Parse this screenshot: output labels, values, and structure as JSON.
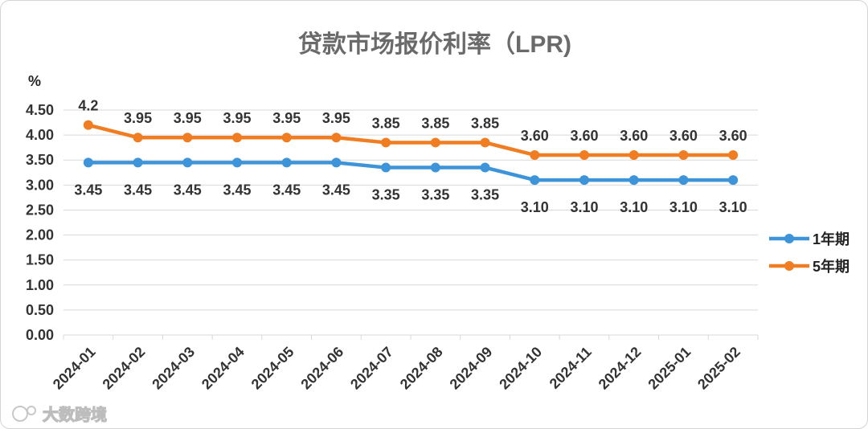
{
  "watermark": "大数跨境",
  "chart_data": {
    "type": "line",
    "title": "贷款市场报价利率（LPR)",
    "ylabel": "%",
    "xlabel": "",
    "ylim": [
      0,
      4.5
    ],
    "yticks": [
      "0.00",
      "0.50",
      "1.00",
      "1.50",
      "2.00",
      "2.50",
      "3.00",
      "3.50",
      "4.00",
      "4.50"
    ],
    "grid": true,
    "legend_position": "right",
    "categories": [
      "2024-01",
      "2024-02",
      "2024-03",
      "2024-04",
      "2024-05",
      "2024-06",
      "2024-07",
      "2024-08",
      "2024-09",
      "2024-10",
      "2024-11",
      "2024-12",
      "2025-01",
      "2025-02"
    ],
    "series": [
      {
        "name": "1年期",
        "color": "#3d94d8",
        "values": [
          3.45,
          3.45,
          3.45,
          3.45,
          3.45,
          3.45,
          3.35,
          3.35,
          3.35,
          3.1,
          3.1,
          3.1,
          3.1,
          3.1
        ],
        "labels": [
          "3.45",
          "3.45",
          "3.45",
          "3.45",
          "3.45",
          "3.45",
          "3.35",
          "3.35",
          "3.35",
          "3.10",
          "3.10",
          "3.10",
          "3.10",
          "3.10"
        ]
      },
      {
        "name": "5年期",
        "color": "#f07d22",
        "values": [
          4.2,
          3.95,
          3.95,
          3.95,
          3.95,
          3.95,
          3.85,
          3.85,
          3.85,
          3.6,
          3.6,
          3.6,
          3.6,
          3.6
        ],
        "labels": [
          "4.2",
          "3.95",
          "3.95",
          "3.95",
          "3.95",
          "3.95",
          "3.85",
          "3.85",
          "3.85",
          "3.60",
          "3.60",
          "3.60",
          "3.60",
          "3.60"
        ]
      }
    ]
  }
}
